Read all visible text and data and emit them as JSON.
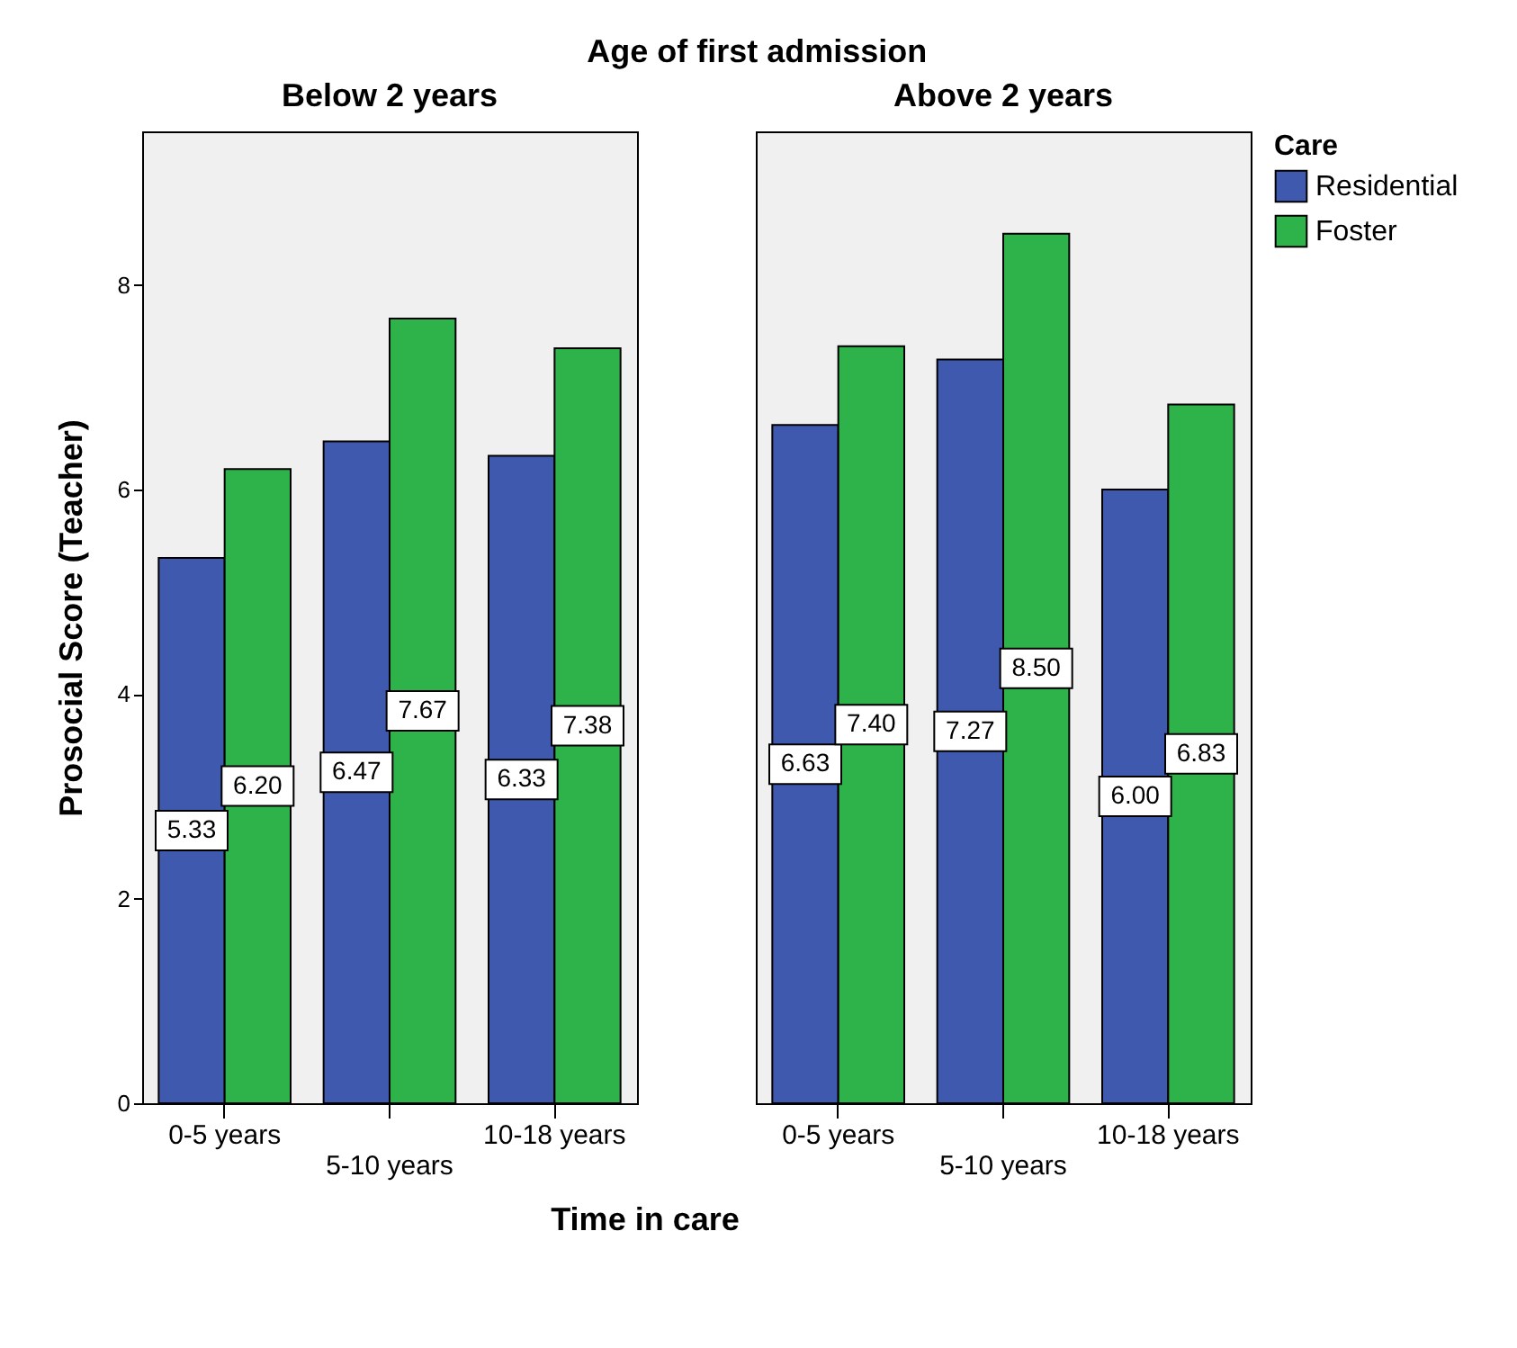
{
  "chart_data": [
    {
      "type": "bar",
      "title": "Age of first admission",
      "subtitle": "Below 2 years",
      "xlabel": "Time in care",
      "ylabel": "Prosocial Score (Teacher)",
      "legend_title": "Care",
      "legend": "right",
      "categories": [
        "0-5 years",
        "5-10 years",
        "10-18 years"
      ],
      "series": [
        {
          "name": "Residential",
          "color": "#3f59ae",
          "values": [
            5.33,
            6.47,
            6.33
          ],
          "value_labels": [
            "5.33",
            "6.47",
            "6.33"
          ]
        },
        {
          "name": "Foster",
          "color": "#2db34a",
          "values": [
            6.2,
            7.67,
            7.38
          ],
          "value_labels": [
            "6.20",
            "7.67",
            "7.38"
          ]
        }
      ],
      "ylim": [
        0,
        9.5
      ],
      "yticks": [
        0,
        2,
        4,
        6,
        8
      ]
    },
    {
      "type": "bar",
      "subtitle": "Above 2 years",
      "categories": [
        "0-5 years",
        "5-10 years",
        "10-18 years"
      ],
      "series": [
        {
          "name": "Residential",
          "color": "#3f59ae",
          "values": [
            6.63,
            7.27,
            6.0
          ],
          "value_labels": [
            "6.63",
            "7.27",
            "6.00"
          ]
        },
        {
          "name": "Foster",
          "color": "#2db34a",
          "values": [
            7.4,
            8.5,
            6.83
          ],
          "value_labels": [
            "7.40",
            "8.50",
            "6.83"
          ]
        }
      ],
      "ylim": [
        0,
        9.5
      ],
      "yticks": [
        0,
        2,
        4,
        6,
        8
      ],
      "tick_labels": "x"
    }
  ]
}
